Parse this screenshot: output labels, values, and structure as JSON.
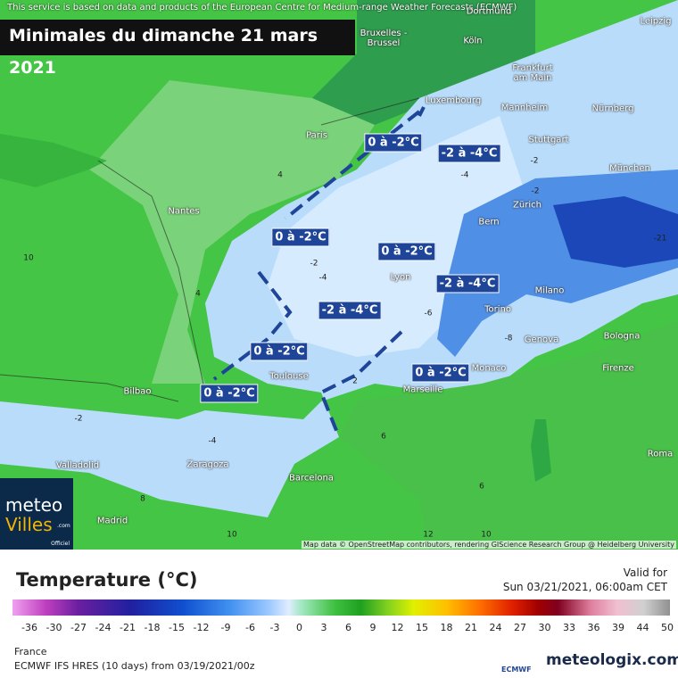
{
  "header": {
    "notice": "This service is based on data and products of the European Centre for Medium-range Weather Forecasts (ECMWF)",
    "title": "Minimales du dimanche 21 mars 2021"
  },
  "map": {
    "cities": [
      "Dortmund",
      "Leipzig",
      "Köln",
      "Bruxelles -\nBrussel",
      "Frankfurt\nam Main",
      "Luxembourg",
      "Mannheim",
      "Nürnberg",
      "Paris",
      "Stuttgart",
      "München",
      "Nantes",
      "Zürich",
      "Bern",
      "Lyon",
      "Milano",
      "Torino",
      "Genova",
      "Bologna",
      "Toulouse",
      "Monaco",
      "Marseille",
      "Firenze",
      "Bilbao",
      "Roma",
      "Zaragoza",
      "Valladolid",
      "Barcelona",
      "Madrid"
    ],
    "zones": [
      "0 à -2°C",
      "-2 à -4°C",
      "0 à -2°C",
      "0 à -2°C",
      "-2 à -4°C",
      "-2 à -4°C",
      "0 à -2°C",
      "0 à -2°C",
      "0 à -2°C"
    ],
    "contours": [
      "10",
      "-21",
      "4",
      "-2",
      "-4",
      "6",
      "10",
      "-2",
      "-4",
      "-6",
      "-8",
      "2",
      "-2",
      "-4",
      "6",
      "8",
      "10",
      "4",
      "-2",
      "12"
    ],
    "attribution": "Map data © OpenStreetMap contributors, rendering GIScience Research Group @ Heidelberg University"
  },
  "badge": {
    "line1": "meteo",
    "line2": "Villes",
    "suffix": ".com",
    "official": "Officiel"
  },
  "legend": {
    "title": "Temperature (°C)",
    "valid_label": "Valid for",
    "valid_time": "Sun 03/21/2021, 06:00am CET",
    "ticks": [
      -36,
      -30,
      -27,
      -24,
      -21,
      -18,
      -15,
      -12,
      -9,
      -6,
      -3,
      0,
      3,
      6,
      9,
      12,
      15,
      18,
      21,
      24,
      27,
      30,
      33,
      36,
      39,
      44,
      50
    ]
  },
  "footer": {
    "region": "France",
    "model": "ECMWF IFS HRES (10 days) from 03/19/2021/00z",
    "ecmwf": "ECMWF",
    "brand": "meteologix.com"
  }
}
